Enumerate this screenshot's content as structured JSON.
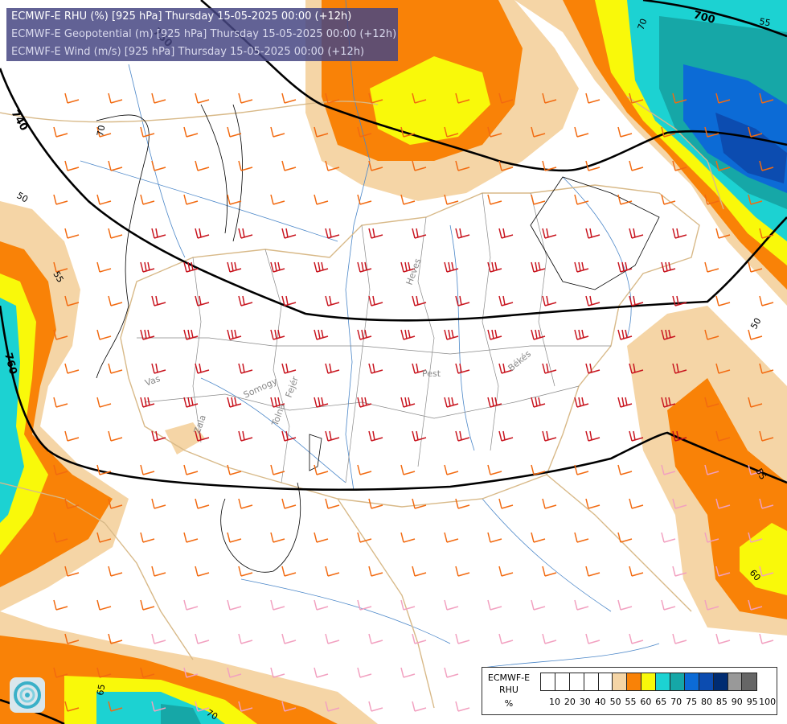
{
  "header": {
    "line1": "ECMWF-E RHU (%) [925 hPa] Thursday 15-05-2025 00:00 (+12h)",
    "line2": "ECMWF-E Geopotential (m) [925 hPa] Thursday 15-05-2025 00:00 (+12h)",
    "line3": "ECMWF-E Wind (m/s) [925 hPa] Thursday 15-05-2025 00:00 (+12h)"
  },
  "legend": {
    "title1": "ECMWF-E",
    "title2": "RHU",
    "unit": "%",
    "ticks": [
      "10",
      "20",
      "30",
      "40",
      "50",
      "55",
      "60",
      "65",
      "70",
      "75",
      "80",
      "85",
      "90",
      "95",
      "100"
    ],
    "colors": [
      "#ffffff",
      "#ffffff",
      "#ffffff",
      "#ffffff",
      "#ffffff",
      "#f5d5a6",
      "#f98207",
      "#f9f90a",
      "#1cd2d2",
      "#16a7a7",
      "#0c6bd6",
      "#0c4cb0",
      "#002c72",
      "#999999",
      "#666666"
    ]
  },
  "contour_labels": {
    "geopotential": [
      "700",
      "740",
      "750",
      "760"
    ],
    "rhu": [
      "70",
      "50",
      "55",
      "70",
      "55",
      "65",
      "70",
      "50",
      "55",
      "60"
    ]
  },
  "places": [
    "Heves",
    "Pest",
    "Békés",
    "Vas",
    "Somogy",
    "Zala",
    "Tolna",
    "Fejér"
  ],
  "icons": {
    "logo": "ecmwf-swirl-logo"
  }
}
